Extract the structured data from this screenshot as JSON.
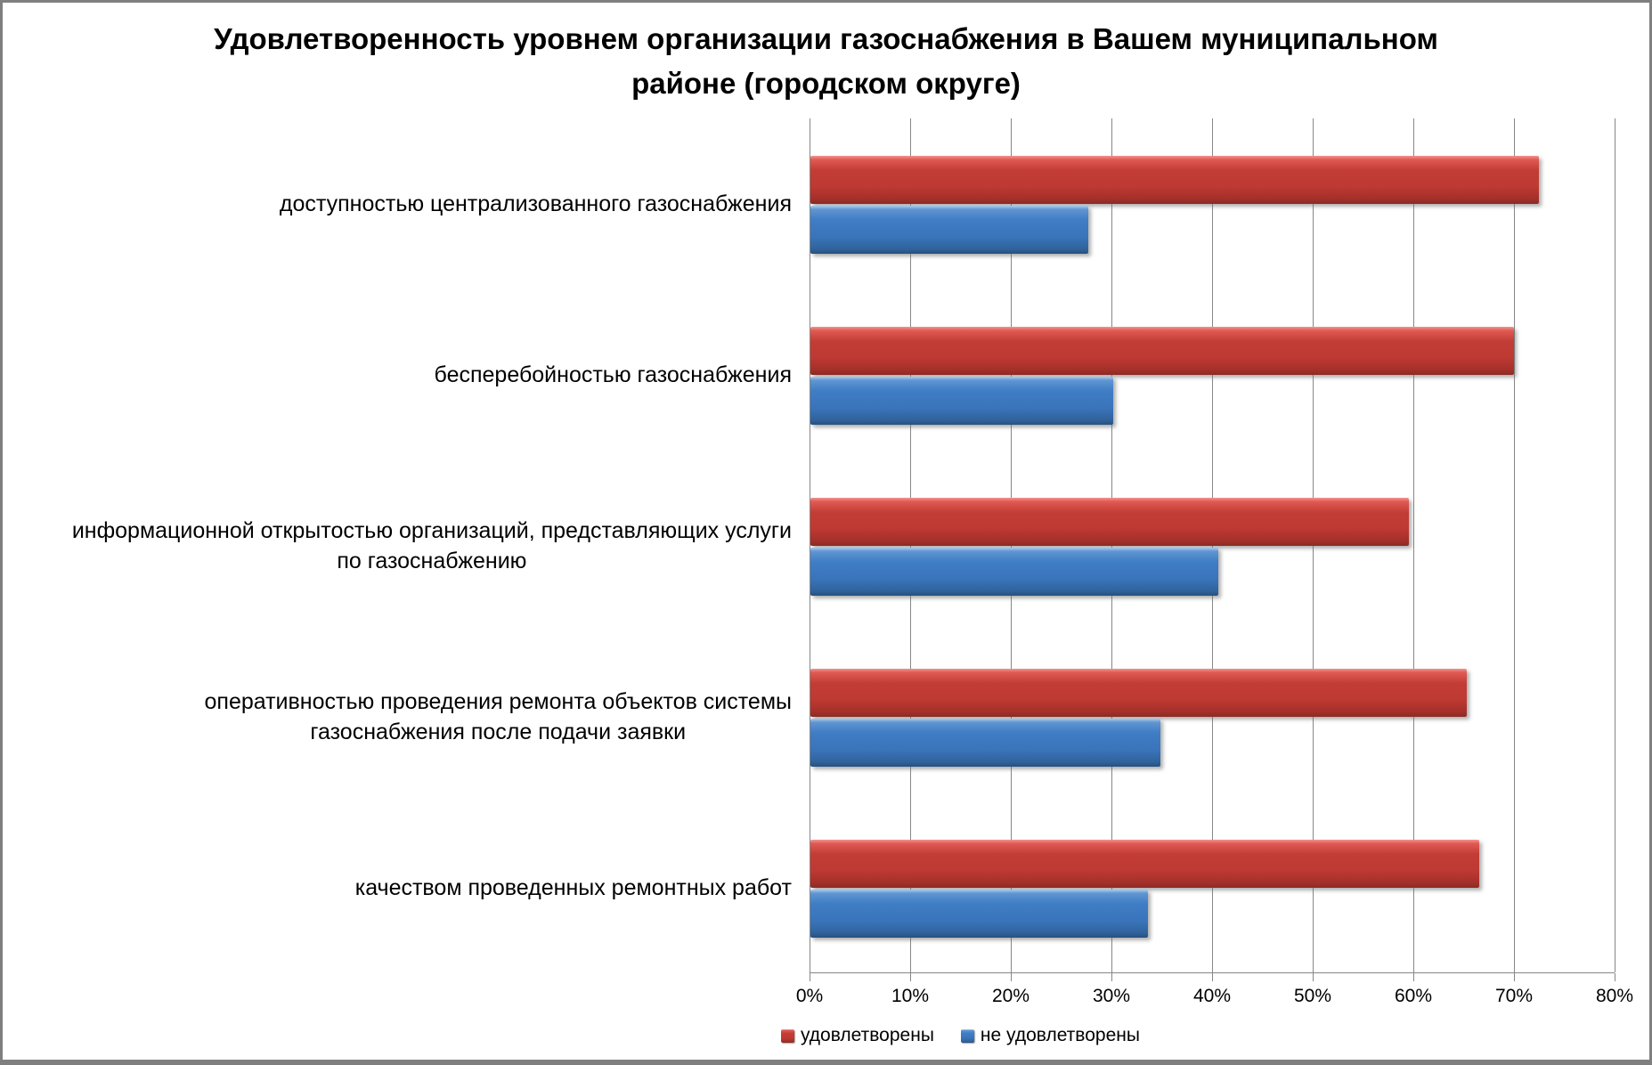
{
  "title": "Удовлетворенность уровнем организации газоснабжения в Вашем муниципальном районе (городском округе)",
  "title_lines": [
    "Удовлетворенность уровнем организации газоснабжения в Вашем муниципальном",
    "районе (городском округе)"
  ],
  "colors": {
    "satisfied_main": "#c13b33",
    "not_satisfied_main": "#3b76bc",
    "gridline": "#878787",
    "frame_border": "#7f7f7f",
    "background": "#ffffff"
  },
  "chart_data": {
    "type": "bar",
    "orientation": "horizontal",
    "title": "Удовлетворенность уровнем организации газоснабжения в Вашем муниципальном районе (городском округе)",
    "categories": [
      "доступностью централизованного газоснабжения",
      "бесперебойностью газоснабжения",
      "информационной открытостью организаций, представляющих услуги по газоснабжению",
      "оперативностью проведения ремонта объектов системы газоснабжения после подачи заявки",
      "качеством проведенных ремонтных работ"
    ],
    "category_lines": [
      [
        "доступностью централизованного газоснабжения"
      ],
      [
        "бесперебойностью газоснабжения"
      ],
      [
        "информационной открытостью организаций, представляющих услуги",
        "по газоснабжению"
      ],
      [
        "оперативностью проведения ремонта объектов системы",
        "газоснабжения после подачи заявки"
      ],
      [
        "качеством проведенных ремонтных работ"
      ]
    ],
    "series": [
      {
        "name": "удовлетворены",
        "color": "#c13b33",
        "gradient": [
          "#f2948f",
          "#e05a53",
          "#c23d35",
          "#bd3932",
          "#a33029",
          "#8a2a25"
        ],
        "values": [
          72.4,
          69.9,
          59.5,
          65.2,
          66.5
        ]
      },
      {
        "name": "не удовлетворены",
        "color": "#3b76bc",
        "gradient": [
          "#abcbea",
          "#5f95d2",
          "#3f7dc4",
          "#3a74ba",
          "#30639c",
          "#27507e"
        ],
        "values": [
          27.6,
          30.1,
          40.5,
          34.8,
          33.5
        ]
      }
    ],
    "xlim": [
      0,
      80
    ],
    "x_tick_step": 10,
    "x_ticks": [
      "0%",
      "10%",
      "20%",
      "30%",
      "40%",
      "50%",
      "60%",
      "70%",
      "80%"
    ],
    "grid": true,
    "legend_position": "bottom"
  }
}
